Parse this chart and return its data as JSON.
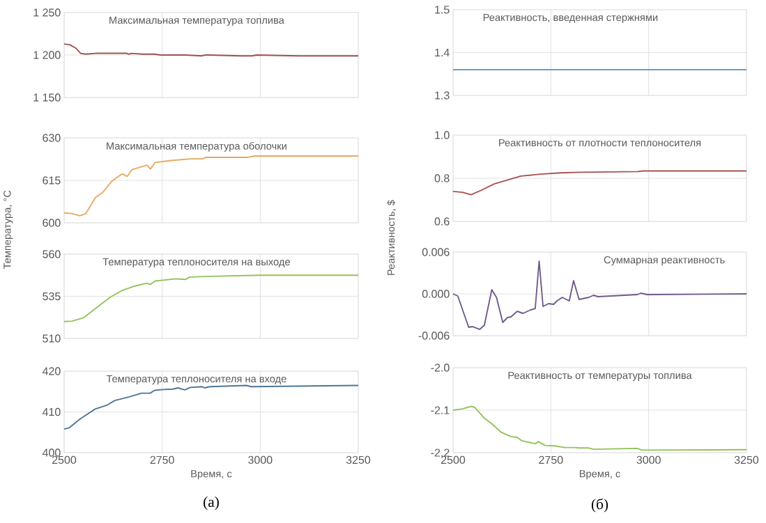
{
  "chart_data": [
    {
      "type": "line",
      "title": "Максимальная температура топлива",
      "xlim": [
        2500,
        3250
      ],
      "xticks": [
        2500,
        2750,
        3000,
        3250
      ],
      "ylim": [
        1150,
        1250
      ],
      "yticks": [
        {
          "value": 1150,
          "label": "1 150"
        },
        {
          "value": 1200,
          "label": "1 200"
        },
        {
          "value": 1250,
          "label": "1 250"
        }
      ],
      "grid": true,
      "tick_labels": "y",
      "series": [
        {
          "color": "#a0504f",
          "x": [
            2500,
            2515,
            2530,
            2542,
            2555,
            2580,
            2640,
            2660,
            2665,
            2672,
            2700,
            2730,
            2745,
            2760,
            2775,
            2790,
            2810,
            2850,
            2860,
            2870,
            2950,
            2980,
            2990,
            3100,
            3250
          ],
          "values": [
            1213,
            1212,
            1208,
            1202,
            1201,
            1202,
            1202,
            1202,
            1201,
            1202,
            1201,
            1201,
            1200,
            1200,
            1200,
            1200,
            1200,
            1199,
            1200,
            1200,
            1199,
            1199,
            1200,
            1199,
            1199
          ]
        }
      ]
    },
    {
      "type": "line",
      "title": "Максимальная температура оболочки",
      "ylabel": "Температура, °C",
      "xlim": [
        2500,
        3250
      ],
      "xticks": [
        2500,
        2750,
        3000,
        3250
      ],
      "ylim": [
        600,
        630
      ],
      "yticks": [
        600,
        615,
        630
      ],
      "grid": true,
      "tick_labels": "y",
      "series": [
        {
          "color": "#e8a860",
          "x": [
            2500,
            2520,
            2540,
            2555,
            2580,
            2598,
            2623,
            2648,
            2661,
            2673,
            2711,
            2720,
            2732,
            2773,
            2823,
            2854,
            2860,
            2966,
            2985,
            3250
          ],
          "values": [
            603.5,
            603.3,
            602.5,
            603.2,
            609,
            610.7,
            614.9,
            617.3,
            616.4,
            618.8,
            620.4,
            619,
            621.3,
            622,
            622.6,
            622.6,
            623.1,
            623.1,
            623.6,
            623.6
          ]
        }
      ]
    },
    {
      "type": "line",
      "title": "Температура теплоносителя на выходе",
      "xlim": [
        2500,
        3250
      ],
      "xticks": [
        2500,
        2750,
        3000,
        3250
      ],
      "ylim": [
        510,
        560
      ],
      "yticks": [
        510,
        535,
        560
      ],
      "grid": true,
      "tick_labels": "y",
      "series": [
        {
          "color": "#92c25a",
          "x": [
            2500,
            2520,
            2549,
            2580,
            2617,
            2648,
            2679,
            2711,
            2720,
            2732,
            2785,
            2810,
            2820,
            2866,
            2997,
            3250
          ],
          "values": [
            520,
            520.3,
            522.2,
            527.8,
            534.4,
            538.5,
            541,
            542.8,
            542.1,
            544.1,
            545.4,
            545,
            546.4,
            546.8,
            547.5,
            547.5
          ]
        }
      ]
    },
    {
      "type": "line",
      "title": "Температура теплоносителя на входе",
      "xlabel": "Время, с",
      "annotations": [
        "(а)"
      ],
      "xlim": [
        2500,
        3250
      ],
      "xticks": [
        2500,
        2750,
        3000,
        3250
      ],
      "ylim": [
        400,
        420
      ],
      "yticks": [
        400,
        410,
        420
      ],
      "grid": true,
      "series": [
        {
          "color": "#4f7596",
          "x": [
            2500,
            2513,
            2541,
            2579,
            2610,
            2629,
            2666,
            2697,
            2719,
            2731,
            2752,
            2777,
            2790,
            2808,
            2821,
            2852,
            2858,
            2871,
            2965,
            2977,
            3250
          ],
          "values": [
            405.8,
            406.1,
            408.3,
            410.7,
            411.7,
            412.8,
            413.7,
            414.6,
            414.6,
            415.3,
            415.5,
            415.6,
            415.9,
            415.4,
            416,
            416.2,
            415.9,
            416.2,
            416.5,
            416.2,
            416.5
          ]
        }
      ]
    },
    {
      "type": "line",
      "title": "Реактивность, введенная стержнями",
      "xlim": [
        2500,
        3250
      ],
      "xticks": [
        2500,
        2750,
        3000,
        3250
      ],
      "ylim": [
        1.3,
        1.5
      ],
      "yticks": [
        1.3,
        1.4,
        1.5
      ],
      "grid": true,
      "tick_labels": "y",
      "series": [
        {
          "color": "#5b8fb8",
          "x": [
            2500,
            3250
          ],
          "values": [
            1.36,
            1.36
          ]
        }
      ]
    },
    {
      "type": "line",
      "title": "Реактивность от плотности теплоносителя",
      "ylabel": "Реактивность, $",
      "xlim": [
        2500,
        3250
      ],
      "xticks": [
        2500,
        2750,
        3000,
        3250
      ],
      "ylim": [
        0.6,
        1.0
      ],
      "yticks": [
        0.6,
        0.8,
        {
          "value": 1.0,
          "label": "1.0"
        }
      ],
      "grid": true,
      "tick_labels": "y",
      "series": [
        {
          "color": "#a85050",
          "x": [
            2500,
            2524,
            2546,
            2574,
            2605,
            2649,
            2673,
            2723,
            2773,
            2823,
            2972,
            2985,
            3250
          ],
          "values": [
            0.739,
            0.735,
            0.724,
            0.746,
            0.774,
            0.797,
            0.81,
            0.819,
            0.825,
            0.828,
            0.831,
            0.834,
            0.834
          ]
        }
      ]
    },
    {
      "type": "line",
      "title": "Суммарная реактивность",
      "xlim": [
        2500,
        3250
      ],
      "xticks": [
        2500,
        2750,
        3000,
        3250
      ],
      "ylim": [
        -0.006,
        0.006
      ],
      "yticks": [
        {
          "value": -0.006,
          "label": "-0.006"
        },
        {
          "value": 0,
          "label": "0.000"
        },
        {
          "value": 0.006,
          "label": "0.006"
        }
      ],
      "grid": true,
      "tick_labels": "y",
      "series": [
        {
          "color": "#6e5a8a",
          "x": [
            2500,
            2512,
            2540,
            2549,
            2568,
            2580,
            2599,
            2611,
            2627,
            2639,
            2648,
            2664,
            2679,
            2698,
            2710,
            2720,
            2730,
            2744,
            2757,
            2766,
            2779,
            2797,
            2808,
            2822,
            2847,
            2859,
            2871,
            2971,
            2980,
            2996,
            3250
          ],
          "values": [
            0,
            -0.0003,
            -0.0048,
            -0.0047,
            -0.0051,
            -0.0045,
            0.0006,
            -0.0005,
            -0.0041,
            -0.0034,
            -0.0033,
            -0.0025,
            -0.0028,
            -0.0023,
            -0.0021,
            0.0047,
            -0.0018,
            -0.0014,
            -0.0015,
            -0.001,
            -0.0005,
            -0.001,
            0.0019,
            -0.0008,
            -0.0005,
            -0.0002,
            -0.0004,
            -0.0001,
            0.0001,
            -0.0001,
            0
          ]
        }
      ]
    },
    {
      "type": "line",
      "title": "Реактивность от температуры топлива",
      "xlabel": "Время, с",
      "annotations": [
        "(б)"
      ],
      "xlim": [
        2500,
        3250
      ],
      "xticks": [
        2500,
        2750,
        3000,
        3250
      ],
      "ylim": [
        -2.2,
        -2.0
      ],
      "yticks": [
        -2.2,
        -2.1,
        {
          "value": -2.0,
          "label": "-2.0"
        }
      ],
      "grid": true,
      "series": [
        {
          "color": "#92c25a",
          "x": [
            2500,
            2524,
            2546,
            2555,
            2580,
            2599,
            2623,
            2648,
            2664,
            2676,
            2710,
            2718,
            2735,
            2760,
            2785,
            2810,
            2822,
            2847,
            2859,
            2971,
            2983,
            3250
          ],
          "values": [
            -2.1,
            -2.097,
            -2.091,
            -2.093,
            -2.119,
            -2.132,
            -2.152,
            -2.162,
            -2.164,
            -2.172,
            -2.179,
            -2.174,
            -2.183,
            -2.184,
            -2.188,
            -2.188,
            -2.189,
            -2.189,
            -2.192,
            -2.19,
            -2.194,
            -2.193
          ]
        }
      ]
    }
  ]
}
